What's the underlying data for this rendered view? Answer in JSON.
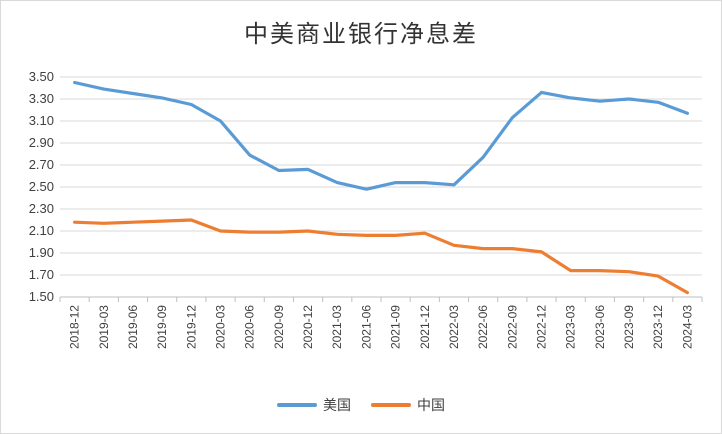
{
  "chart_data": {
    "type": "line",
    "title": "中美商业银行净息差",
    "xlabel": "",
    "ylabel": "",
    "ylim": [
      1.5,
      3.5
    ],
    "yticks": [
      "3.50",
      "3.30",
      "3.10",
      "2.90",
      "2.70",
      "2.50",
      "2.30",
      "2.10",
      "1.90",
      "1.70",
      "1.50"
    ],
    "categories": [
      "2018-12",
      "2019-03",
      "2019-06",
      "2019-09",
      "2019-12",
      "2020-03",
      "2020-06",
      "2020-09",
      "2020-12",
      "2021-03",
      "2021-06",
      "2021-09",
      "2021-12",
      "2022-03",
      "2022-06",
      "2022-09",
      "2022-12",
      "2023-03",
      "2023-06",
      "2023-09",
      "2023-12",
      "2024-03"
    ],
    "grid": true,
    "legend_position": "bottom",
    "series": [
      {
        "name": "美国",
        "color": "#5b9bd5",
        "values": [
          3.45,
          3.39,
          3.35,
          3.31,
          3.25,
          3.1,
          2.79,
          2.65,
          2.66,
          2.54,
          2.48,
          2.54,
          2.54,
          2.52,
          2.77,
          3.13,
          3.36,
          3.31,
          3.28,
          3.3,
          3.27,
          3.17
        ]
      },
      {
        "name": "中国",
        "color": "#ed7d31",
        "values": [
          2.18,
          2.17,
          2.18,
          2.19,
          2.2,
          2.1,
          2.09,
          2.09,
          2.1,
          2.07,
          2.06,
          2.06,
          2.08,
          1.97,
          1.94,
          1.94,
          1.91,
          1.74,
          1.74,
          1.73,
          1.69,
          1.54
        ]
      }
    ]
  }
}
